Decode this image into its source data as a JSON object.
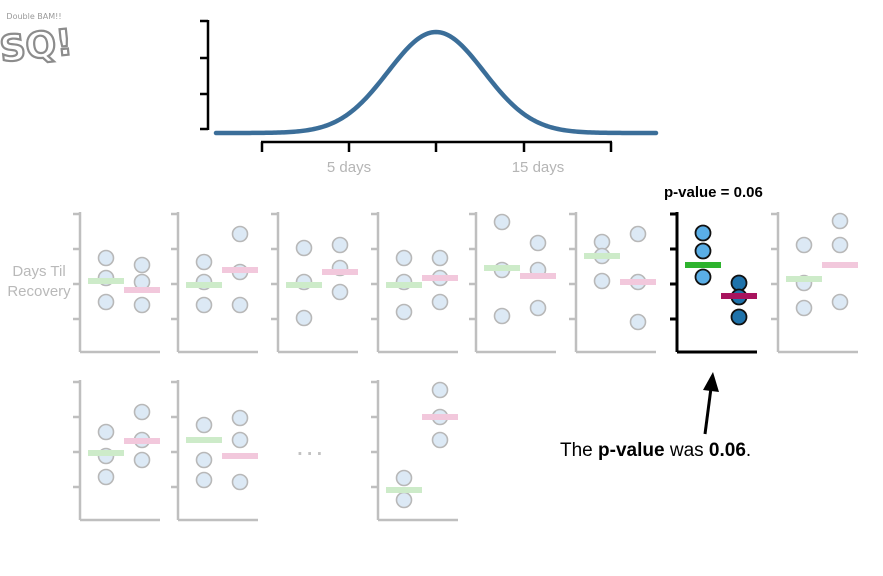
{
  "logo": {
    "top_text": "Double BAM!!",
    "main_text": "SQ!"
  },
  "distribution": {
    "x_tick_labels": [
      "5 days",
      "15 days"
    ],
    "color": "#3b6e99"
  },
  "y_axis_label": {
    "line1": "Days Til",
    "line2": "Recovery"
  },
  "highlighted_result": {
    "title": "p-value = 0.06",
    "caption_prefix": "The ",
    "caption_bold1": "p-value",
    "caption_mid": " was ",
    "caption_bold2": "0.06",
    "caption_suffix": "."
  },
  "ellipsis": "...",
  "colors": {
    "faded_dot_fill": "#dce9f5",
    "faded_dot_stroke": "#b8b8b8",
    "faded_green": "#cdebc9",
    "faded_pink": "#f2c8dc",
    "faded_axis": "#bfbfbf",
    "highlight_dot_light": "#5aaee6",
    "highlight_dot_dark": "#1f73ab",
    "highlight_green": "#2eb32e",
    "highlight_magenta": "#a8145e"
  },
  "experiments": [
    {
      "group1": [
        258,
        278,
        302
      ],
      "group2": [
        265,
        282,
        305
      ],
      "mean1": 281,
      "mean2": 290
    },
    {
      "group1": [
        262,
        282,
        305
      ],
      "group2": [
        234,
        272,
        305
      ],
      "mean1": 285,
      "mean2": 270
    },
    {
      "group1": [
        248,
        282,
        318
      ],
      "group2": [
        245,
        268,
        292
      ],
      "mean1": 285,
      "mean2": 272
    },
    {
      "group1": [
        258,
        282,
        312
      ],
      "group2": [
        258,
        278,
        302
      ],
      "mean1": 285,
      "mean2": 278
    },
    {
      "group1": [
        222,
        270,
        316
      ],
      "group2": [
        243,
        270,
        308
      ],
      "mean1": 268,
      "mean2": 276
    },
    {
      "group1": [
        242,
        256,
        281
      ],
      "group2": [
        234,
        282,
        322
      ],
      "mean1": 256,
      "mean2": 282
    },
    {
      "group1": [
        233,
        251,
        277
      ],
      "group2": [
        283,
        297,
        317
      ],
      "mean1": 265,
      "mean2": 296,
      "highlight": true
    },
    {
      "group1": [
        245,
        283,
        308
      ],
      "group2": [
        221,
        245,
        302
      ],
      "mean1": 279,
      "mean2": 265
    },
    {
      "group1": [
        432,
        456,
        477
      ],
      "group2": [
        412,
        440,
        460
      ],
      "mean1": 453,
      "mean2": 441
    },
    {
      "group1": [
        425,
        460,
        480
      ],
      "group2": [
        418,
        440,
        482
      ],
      "mean1": 440,
      "mean2": 456
    },
    {
      "group1": [
        478,
        500
      ],
      "group2": [
        390,
        417,
        440
      ],
      "mean1": 490,
      "mean2": 417
    }
  ]
}
